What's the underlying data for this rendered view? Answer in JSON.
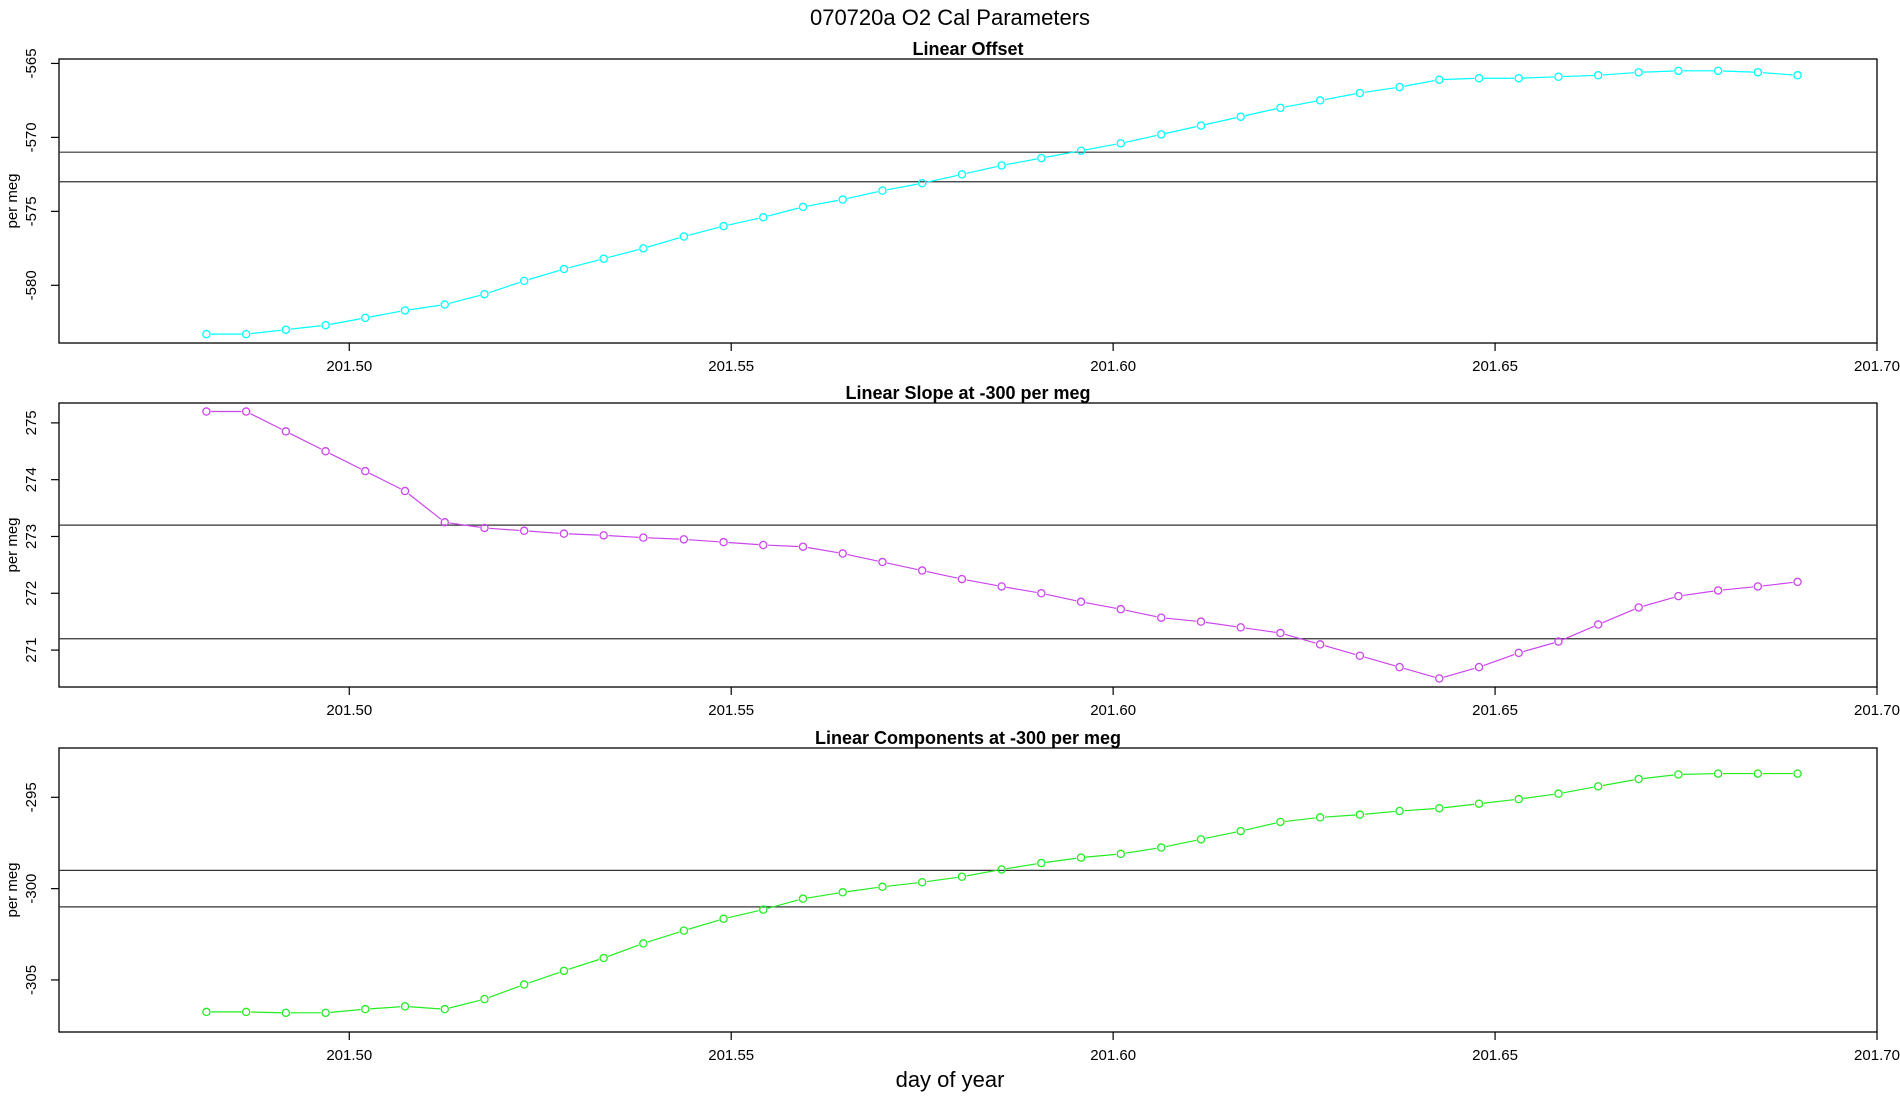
{
  "title": "070720a   O2 Cal Parameters",
  "xlabel": "day of year",
  "chart_data": [
    {
      "type": "line",
      "title": "Linear Offset",
      "ylabel": "per meg",
      "color": "#00ffff",
      "xlim": [
        201.462,
        201.7
      ],
      "ylim": [
        -583.9,
        -564.7
      ],
      "xticks": [
        201.5,
        201.55,
        201.6,
        201.65,
        201.7
      ],
      "xtick_labels": [
        "201.50",
        "201.55",
        "201.60",
        "201.65",
        "201.70"
      ],
      "yticks": [
        -565,
        -570,
        -575,
        -580
      ],
      "ytick_labels": [
        "-565",
        "-570",
        "-575",
        "-580"
      ],
      "hlines": [
        -571.0,
        -573.0
      ],
      "x": [
        201.4813,
        201.4865,
        201.4917,
        201.4969,
        201.5021,
        201.5073,
        201.5125,
        201.5177,
        201.5229,
        201.5281,
        201.5333,
        201.5385,
        201.5438,
        201.549,
        201.5542,
        201.5594,
        201.5646,
        201.5698,
        201.575,
        201.5802,
        201.5854,
        201.5906,
        201.5958,
        201.601,
        201.6063,
        201.6115,
        201.6167,
        201.6219,
        201.6271,
        201.6323,
        201.6375,
        201.6427,
        201.6479,
        201.6531,
        201.6583,
        201.6635,
        201.6688,
        201.674,
        201.6792,
        201.6844,
        201.6896
      ],
      "y": [
        -583.3,
        -583.3,
        -583.0,
        -582.7,
        -582.2,
        -581.7,
        -581.3,
        -580.6,
        -579.7,
        -578.9,
        -578.2,
        -577.5,
        -576.7,
        -576.0,
        -575.4,
        -574.7,
        -574.2,
        -573.6,
        -573.1,
        -572.5,
        -571.9,
        -571.4,
        -570.9,
        -570.4,
        -569.8,
        -569.2,
        -568.6,
        -568.0,
        -567.5,
        -567.0,
        -566.6,
        -566.1,
        -566.0,
        -566.0,
        -565.9,
        -565.8,
        -565.6,
        -565.5,
        -565.5,
        -565.6,
        -565.8
      ]
    },
    {
      "type": "line",
      "title": "Linear Slope at -300 per meg",
      "ylabel": "per meg",
      "color": "#cc44ee",
      "xlim": [
        201.462,
        201.7
      ],
      "ylim": [
        270.35,
        275.35
      ],
      "xticks": [
        201.5,
        201.55,
        201.6,
        201.65,
        201.7
      ],
      "xtick_labels": [
        "201.50",
        "201.55",
        "201.60",
        "201.65",
        "201.70"
      ],
      "yticks": [
        271,
        272,
        273,
        274,
        275
      ],
      "ytick_labels": [
        "271",
        "272",
        "273",
        "274",
        "275"
      ],
      "hlines": [
        273.2,
        271.2
      ],
      "x": [
        201.4813,
        201.4865,
        201.4917,
        201.4969,
        201.5021,
        201.5073,
        201.5125,
        201.5177,
        201.5229,
        201.5281,
        201.5333,
        201.5385,
        201.5438,
        201.549,
        201.5542,
        201.5594,
        201.5646,
        201.5698,
        201.575,
        201.5802,
        201.5854,
        201.5906,
        201.5958,
        201.601,
        201.6063,
        201.6115,
        201.6167,
        201.6219,
        201.6271,
        201.6323,
        201.6375,
        201.6427,
        201.6479,
        201.6531,
        201.6583,
        201.6635,
        201.6688,
        201.674,
        201.6792,
        201.6844,
        201.6896
      ],
      "y": [
        275.2,
        275.2,
        274.85,
        274.5,
        274.15,
        273.8,
        273.25,
        273.15,
        273.1,
        273.05,
        273.02,
        272.98,
        272.95,
        272.9,
        272.85,
        272.82,
        272.7,
        272.55,
        272.4,
        272.25,
        272.12,
        272.0,
        271.85,
        271.72,
        271.57,
        271.5,
        271.4,
        271.3,
        271.1,
        270.9,
        270.7,
        270.5,
        270.7,
        270.95,
        271.15,
        271.45,
        271.75,
        271.95,
        272.05,
        272.12,
        272.2
      ]
    },
    {
      "type": "line",
      "title": "Linear Components at -300 per meg",
      "ylabel": "per meg",
      "color": "#22ee22",
      "xlim": [
        201.462,
        201.7
      ],
      "ylim": [
        -307.85,
        -292.3
      ],
      "xticks": [
        201.5,
        201.55,
        201.6,
        201.65,
        201.7
      ],
      "xtick_labels": [
        "201.50",
        "201.55",
        "201.60",
        "201.65",
        "201.70"
      ],
      "yticks": [
        -295,
        -300,
        -305
      ],
      "ytick_labels": [
        "-295",
        "-300",
        "-305"
      ],
      "hlines": [
        -299.0,
        -301.0
      ],
      "x": [
        201.4813,
        201.4865,
        201.4917,
        201.4969,
        201.5021,
        201.5073,
        201.5125,
        201.5177,
        201.5229,
        201.5281,
        201.5333,
        201.5385,
        201.5438,
        201.549,
        201.5542,
        201.5594,
        201.5646,
        201.5698,
        201.575,
        201.5802,
        201.5854,
        201.5906,
        201.5958,
        201.601,
        201.6063,
        201.6115,
        201.6167,
        201.6219,
        201.6271,
        201.6323,
        201.6375,
        201.6427,
        201.6479,
        201.6531,
        201.6583,
        201.6635,
        201.6688,
        201.674,
        201.6792,
        201.6844,
        201.6896
      ],
      "y": [
        -306.75,
        -306.75,
        -306.8,
        -306.8,
        -306.6,
        -306.45,
        -306.6,
        -306.05,
        -305.25,
        -304.5,
        -303.8,
        -303.0,
        -302.3,
        -301.65,
        -301.15,
        -300.55,
        -300.2,
        -299.9,
        -299.65,
        -299.35,
        -298.95,
        -298.6,
        -298.3,
        -298.1,
        -297.75,
        -297.3,
        -296.85,
        -296.35,
        -296.1,
        -295.95,
        -295.75,
        -295.6,
        -295.35,
        -295.1,
        -294.8,
        -294.4,
        -294.0,
        -293.75,
        -293.7,
        -293.7,
        -293.7
      ]
    }
  ]
}
